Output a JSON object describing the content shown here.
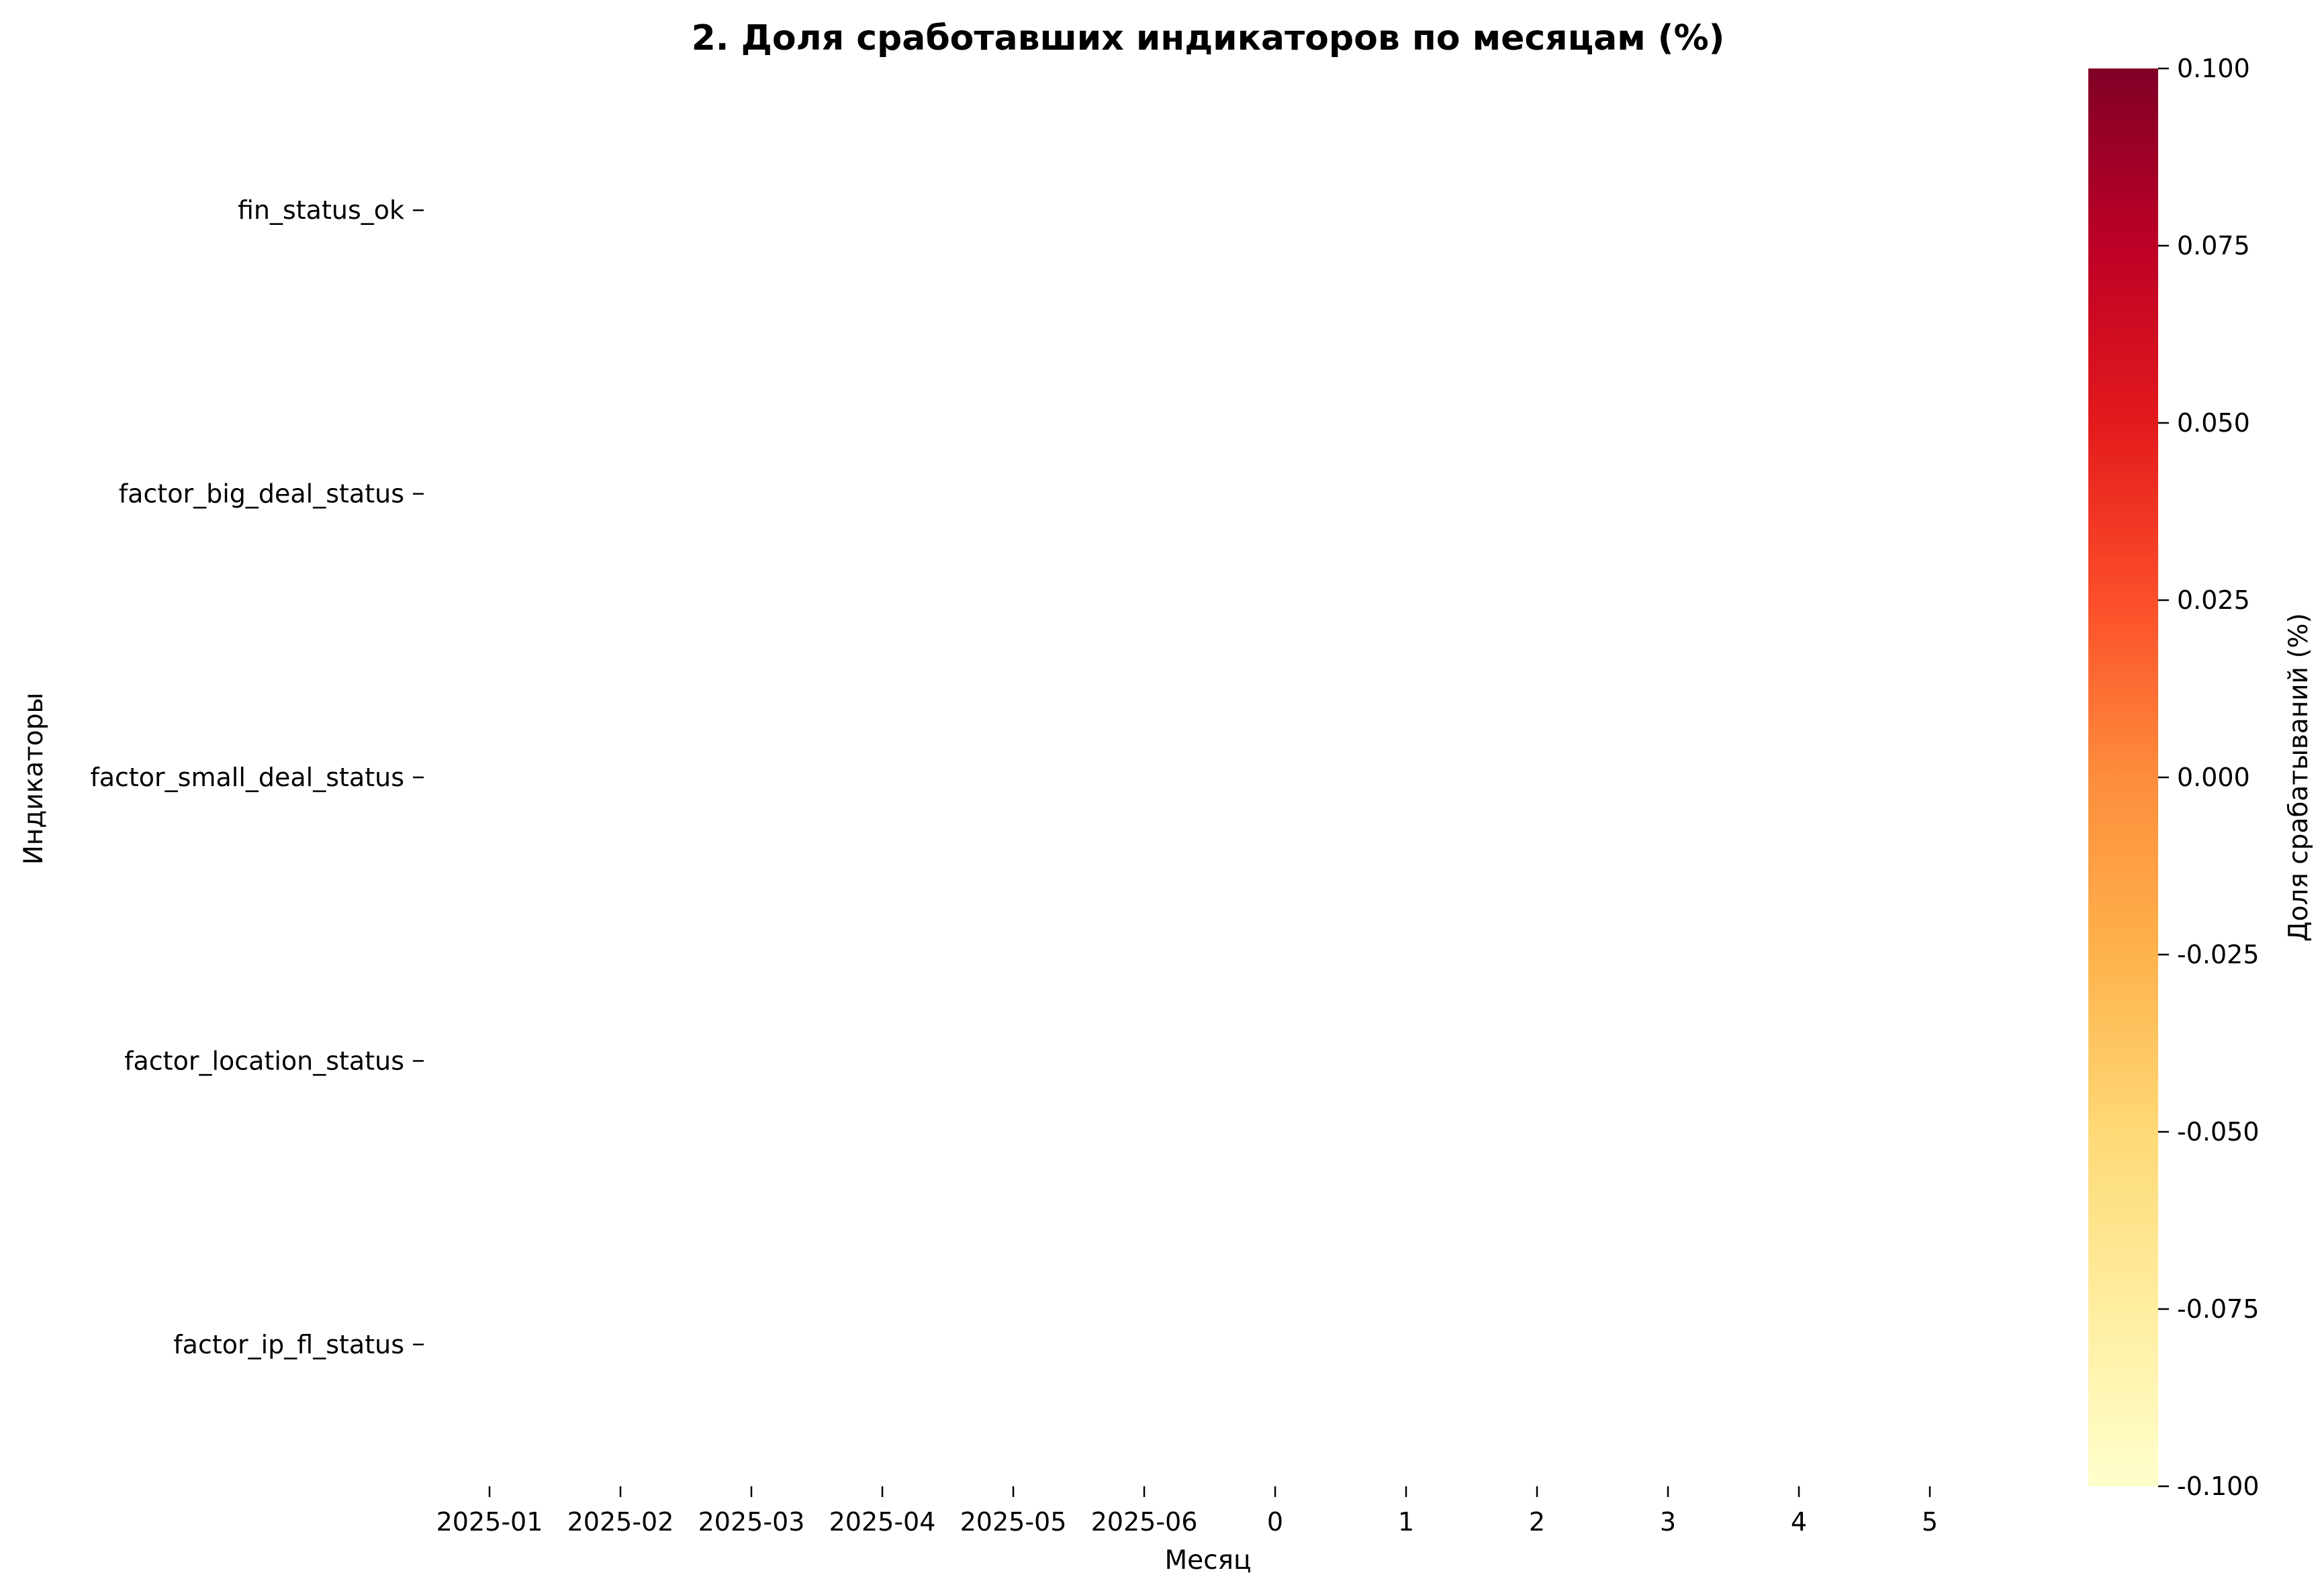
{
  "chart_data": {
    "type": "heatmap",
    "title": "2. Доля сработавших индикаторов по месяцам (%)",
    "xlabel": "Месяц",
    "ylabel": "Индикаторы",
    "x_categories": [
      "2025-01",
      "2025-02",
      "2025-03",
      "2025-04",
      "2025-05",
      "2025-06",
      "0",
      "1",
      "2",
      "3",
      "4",
      "5"
    ],
    "y_categories": [
      "fin_status_ok",
      "factor_big_deal_status",
      "factor_small_deal_status",
      "factor_location_status",
      "factor_ip_fl_status"
    ],
    "values": [
      [
        null,
        null,
        null,
        null,
        null,
        null,
        null,
        null,
        null,
        null,
        null,
        null
      ],
      [
        null,
        null,
        null,
        null,
        null,
        null,
        null,
        null,
        null,
        null,
        null,
        null
      ],
      [
        null,
        null,
        null,
        null,
        null,
        null,
        null,
        null,
        null,
        null,
        null,
        null
      ],
      [
        null,
        null,
        null,
        null,
        null,
        null,
        null,
        null,
        null,
        null,
        null,
        null
      ],
      [
        null,
        null,
        null,
        null,
        null,
        null,
        null,
        null,
        null,
        null,
        null,
        null
      ]
    ],
    "colorbar": {
      "label": "Доля срабатываний (%)",
      "colormap": "YlOrRd",
      "colors": [
        "#ffffcc",
        "#ffeda0",
        "#fed976",
        "#feb24c",
        "#fd8d3c",
        "#fc4e2a",
        "#e31a1c",
        "#bd0026",
        "#800026"
      ],
      "range": [
        -0.1,
        0.1
      ],
      "ticks": [
        "0.100",
        "0.075",
        "0.050",
        "0.025",
        "0.000",
        "-0.025",
        "-0.050",
        "-0.075",
        "-0.100"
      ]
    },
    "grid": false
  }
}
